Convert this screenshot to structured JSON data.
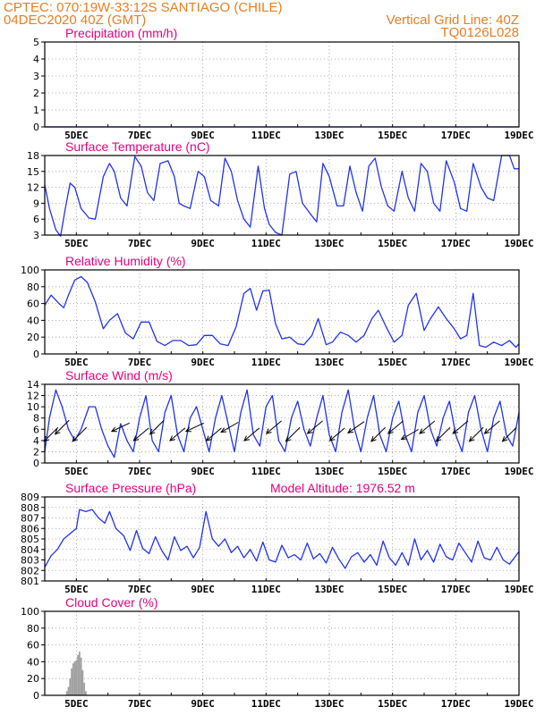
{
  "header": {
    "line1_left": "CPTEC:   070:19W-33:12S   SANTIAGO (CHILE)",
    "line2_left": "04DEC2020 40Z (GMT)",
    "line2_right": "Vertical Grid Line: 40Z",
    "line3_right": "TQ0126L028"
  },
  "colors": {
    "header": "#e67e22",
    "title": "#e6007e",
    "line": "#2233ee",
    "cloud": "#a0a0a0",
    "arrow": "#000000"
  },
  "x_ticks": [
    "5DEC",
    "7DEC",
    "9DEC",
    "11DEC",
    "13DEC",
    "15DEC",
    "17DEC",
    "19DEC"
  ],
  "chart_data": [
    {
      "type": "line",
      "title": "Precipitation (mm/h)",
      "x_range": [
        "04DEC2020",
        "19DEC2020"
      ],
      "ylim": [
        0,
        5
      ],
      "y_ticks": [
        "0",
        "1",
        "2",
        "3",
        "4",
        "5"
      ],
      "x": [
        4.0,
        19.0
      ],
      "values": [
        0,
        0
      ],
      "grid": true
    },
    {
      "type": "line",
      "title": "Surface Temperature (nC)",
      "ylim": [
        3,
        18
      ],
      "y_ticks": [
        "3",
        "6",
        "9",
        "12",
        "15",
        "18"
      ],
      "x": [
        4.0,
        4.15,
        4.35,
        4.5,
        4.65,
        4.8,
        4.95,
        5.15,
        5.4,
        5.6,
        5.85,
        6.05,
        6.2,
        6.4,
        6.6,
        6.85,
        7.05,
        7.25,
        7.45,
        7.65,
        7.9,
        8.1,
        8.25,
        8.4,
        8.6,
        8.85,
        9.05,
        9.25,
        9.5,
        9.7,
        9.9,
        10.1,
        10.3,
        10.5,
        10.75,
        10.95,
        11.1,
        11.3,
        11.5,
        11.75,
        11.95,
        12.15,
        12.4,
        12.6,
        12.8,
        13.0,
        13.25,
        13.45,
        13.65,
        13.85,
        14.05,
        14.25,
        14.45,
        14.65,
        14.85,
        15.05,
        15.3,
        15.5,
        15.7,
        15.9,
        16.1,
        16.3,
        16.5,
        16.7,
        16.95,
        17.15,
        17.35,
        17.55,
        17.8,
        18.0,
        18.2,
        18.45,
        18.7,
        18.85,
        19.0
      ],
      "values": [
        12.5,
        8,
        4,
        2.8,
        8,
        12.8,
        12,
        8,
        6.2,
        6,
        14,
        16.5,
        15,
        10,
        8.5,
        17.8,
        16,
        11,
        9.5,
        16.5,
        17,
        14,
        9,
        8.5,
        8,
        15,
        14,
        9.5,
        8.5,
        17.5,
        15,
        9.5,
        6,
        4.5,
        16,
        8,
        5,
        3.5,
        3,
        14.5,
        15,
        9,
        7,
        5.5,
        16.5,
        14,
        8.5,
        8.5,
        16,
        11,
        7.5,
        16,
        17.5,
        12,
        8.5,
        7.5,
        15,
        10,
        7.5,
        16.5,
        15,
        9,
        7.5,
        17,
        13,
        8,
        7.5,
        16.5,
        12,
        10,
        9.5,
        18,
        18,
        15.5,
        15.5
      ],
      "grid": true
    },
    {
      "type": "line",
      "title": "Relative Humidity (%)",
      "ylim": [
        0,
        100
      ],
      "y_ticks": [
        "0",
        "20",
        "40",
        "60",
        "80",
        "100"
      ],
      "x": [
        4.0,
        4.2,
        4.45,
        4.6,
        4.75,
        4.95,
        5.15,
        5.35,
        5.6,
        5.85,
        6.05,
        6.3,
        6.55,
        6.8,
        7.05,
        7.3,
        7.55,
        7.8,
        8.05,
        8.3,
        8.55,
        8.8,
        9.05,
        9.3,
        9.55,
        9.8,
        10.05,
        10.3,
        10.5,
        10.7,
        10.9,
        11.1,
        11.3,
        11.5,
        11.75,
        12.0,
        12.2,
        12.45,
        12.65,
        12.9,
        13.1,
        13.35,
        13.6,
        13.85,
        14.1,
        14.35,
        14.55,
        14.8,
        15.05,
        15.3,
        15.5,
        15.75,
        16.0,
        16.2,
        16.45,
        16.7,
        16.95,
        17.15,
        17.35,
        17.55,
        17.75,
        17.95,
        18.2,
        18.45,
        18.7,
        18.9,
        19.0
      ],
      "values": [
        58,
        70,
        60,
        55,
        70,
        88,
        92,
        85,
        62,
        30,
        40,
        48,
        25,
        18,
        38,
        38,
        15,
        10,
        16,
        16,
        10,
        11,
        22,
        22,
        12,
        10,
        32,
        72,
        78,
        52,
        75,
        76,
        36,
        18,
        20,
        12,
        11,
        22,
        42,
        11,
        14,
        26,
        22,
        14,
        22,
        42,
        52,
        32,
        14,
        22,
        58,
        72,
        28,
        42,
        56,
        42,
        30,
        18,
        22,
        72,
        10,
        8,
        14,
        10,
        16,
        8,
        12
      ],
      "grid": true
    },
    {
      "type": "line",
      "title": "Surface Wind (m/s)",
      "ylim": [
        0,
        14
      ],
      "y_ticks": [
        "0",
        "2",
        "4",
        "6",
        "8",
        "10",
        "12",
        "14"
      ],
      "x": [
        4.0,
        4.15,
        4.35,
        4.55,
        4.75,
        4.95,
        5.15,
        5.4,
        5.6,
        5.8,
        6.0,
        6.2,
        6.4,
        6.6,
        6.8,
        7.0,
        7.2,
        7.4,
        7.6,
        7.8,
        8.0,
        8.2,
        8.4,
        8.6,
        8.8,
        9.0,
        9.2,
        9.4,
        9.6,
        9.8,
        10.0,
        10.2,
        10.4,
        10.6,
        10.8,
        11.0,
        11.2,
        11.4,
        11.6,
        11.8,
        12.0,
        12.2,
        12.4,
        12.6,
        12.8,
        13.0,
        13.2,
        13.4,
        13.6,
        13.8,
        14.0,
        14.2,
        14.4,
        14.6,
        14.8,
        15.0,
        15.2,
        15.4,
        15.6,
        15.8,
        16.0,
        16.2,
        16.4,
        16.6,
        16.8,
        17.0,
        17.2,
        17.4,
        17.6,
        17.8,
        18.0,
        18.2,
        18.4,
        18.6,
        18.8,
        19.0
      ],
      "values": [
        2,
        8,
        13,
        10,
        6,
        4,
        6,
        10,
        10,
        6,
        3,
        1,
        7,
        4,
        2,
        8,
        12,
        4,
        2,
        9,
        12,
        5,
        2,
        8,
        10,
        6,
        2,
        8,
        12,
        7,
        2,
        9,
        13,
        5,
        3,
        10,
        12,
        4,
        2,
        8,
        11,
        6,
        3,
        8,
        12,
        5,
        2,
        9,
        13,
        6,
        2,
        8,
        12,
        5,
        2,
        8,
        11,
        5,
        2,
        9,
        12,
        6,
        3,
        8,
        11,
        5,
        2,
        9,
        12,
        6,
        2,
        8,
        11,
        5,
        3,
        9
      ],
      "grid": true,
      "arrows": [
        {
          "x": 4.2,
          "dir_deg": 225
        },
        {
          "x": 4.55,
          "dir_deg": 225
        },
        {
          "x": 5.1,
          "dir_deg": 225
        },
        {
          "x": 6.4,
          "dir_deg": 245
        },
        {
          "x": 7.05,
          "dir_deg": 230
        },
        {
          "x": 7.55,
          "dir_deg": 225
        },
        {
          "x": 8.2,
          "dir_deg": 230
        },
        {
          "x": 8.75,
          "dir_deg": 245
        },
        {
          "x": 9.35,
          "dir_deg": 230
        },
        {
          "x": 9.85,
          "dir_deg": 240
        },
        {
          "x": 10.55,
          "dir_deg": 230
        },
        {
          "x": 11.25,
          "dir_deg": 230
        },
        {
          "x": 11.85,
          "dir_deg": 225
        },
        {
          "x": 12.55,
          "dir_deg": 230
        },
        {
          "x": 13.25,
          "dir_deg": 230
        },
        {
          "x": 13.85,
          "dir_deg": 235
        },
        {
          "x": 14.55,
          "dir_deg": 225
        },
        {
          "x": 15.1,
          "dir_deg": 230
        },
        {
          "x": 15.55,
          "dir_deg": 240
        },
        {
          "x": 16.1,
          "dir_deg": 230
        },
        {
          "x": 16.6,
          "dir_deg": 225
        },
        {
          "x": 17.15,
          "dir_deg": 230
        },
        {
          "x": 17.65,
          "dir_deg": 225
        },
        {
          "x": 18.15,
          "dir_deg": 230
        },
        {
          "x": 18.7,
          "dir_deg": 225
        }
      ]
    },
    {
      "type": "line",
      "title": "Surface Pressure (hPa)",
      "annotation": "Model Altitude: 1976.52 m",
      "ylim": [
        801,
        809
      ],
      "y_ticks": [
        "801",
        "802",
        "803",
        "804",
        "805",
        "806",
        "807",
        "808",
        "809"
      ],
      "x": [
        4.0,
        4.2,
        4.4,
        4.6,
        4.8,
        5.0,
        5.1,
        5.3,
        5.5,
        5.7,
        5.9,
        6.05,
        6.25,
        6.5,
        6.7,
        6.9,
        7.1,
        7.3,
        7.5,
        7.7,
        7.9,
        8.1,
        8.3,
        8.5,
        8.7,
        8.9,
        9.1,
        9.3,
        9.5,
        9.7,
        9.9,
        10.1,
        10.3,
        10.5,
        10.7,
        10.9,
        11.1,
        11.3,
        11.5,
        11.7,
        11.9,
        12.1,
        12.3,
        12.5,
        12.7,
        12.9,
        13.1,
        13.3,
        13.5,
        13.7,
        13.9,
        14.1,
        14.3,
        14.5,
        14.7,
        14.9,
        15.1,
        15.3,
        15.5,
        15.7,
        15.9,
        16.1,
        16.3,
        16.5,
        16.7,
        16.9,
        17.1,
        17.3,
        17.5,
        17.7,
        17.9,
        18.1,
        18.3,
        18.5,
        18.7,
        19.0
      ],
      "values": [
        802.3,
        803.4,
        804,
        805,
        805.5,
        806,
        807.8,
        807.6,
        807.8,
        807,
        806.5,
        807.6,
        806,
        805.3,
        803.9,
        805.8,
        804.1,
        803.6,
        805.2,
        803.9,
        803,
        805.2,
        803.9,
        804.3,
        803.2,
        804.2,
        807.6,
        805,
        804.3,
        805,
        803.7,
        804.3,
        803.2,
        804,
        802.9,
        804.7,
        803,
        802.8,
        804.4,
        803.2,
        803.5,
        803,
        804.6,
        803.1,
        803.6,
        802.7,
        804.2,
        803.1,
        802.2,
        803.3,
        803.7,
        802.8,
        803.5,
        802.5,
        804.8,
        803.2,
        802.5,
        803.7,
        802.5,
        805,
        803,
        803.9,
        802.8,
        804.5,
        803.3,
        803,
        804.6,
        803.7,
        802.8,
        804.8,
        803.2,
        803,
        804.2,
        803,
        802.6,
        803.8
      ],
      "grid": true
    },
    {
      "type": "bar",
      "title": "Cloud Cover (%)",
      "ylim": [
        0,
        100
      ],
      "y_ticks": [
        "0",
        "20",
        "40",
        "60",
        "80",
        "100"
      ],
      "x": [
        4.7,
        4.75,
        4.8,
        4.85,
        4.9,
        4.95,
        5.0,
        5.05,
        5.1,
        5.15,
        5.2,
        5.25,
        5.3
      ],
      "values": [
        5,
        10,
        20,
        32,
        38,
        40,
        42,
        48,
        52,
        45,
        30,
        15,
        5
      ],
      "grid": true
    }
  ]
}
